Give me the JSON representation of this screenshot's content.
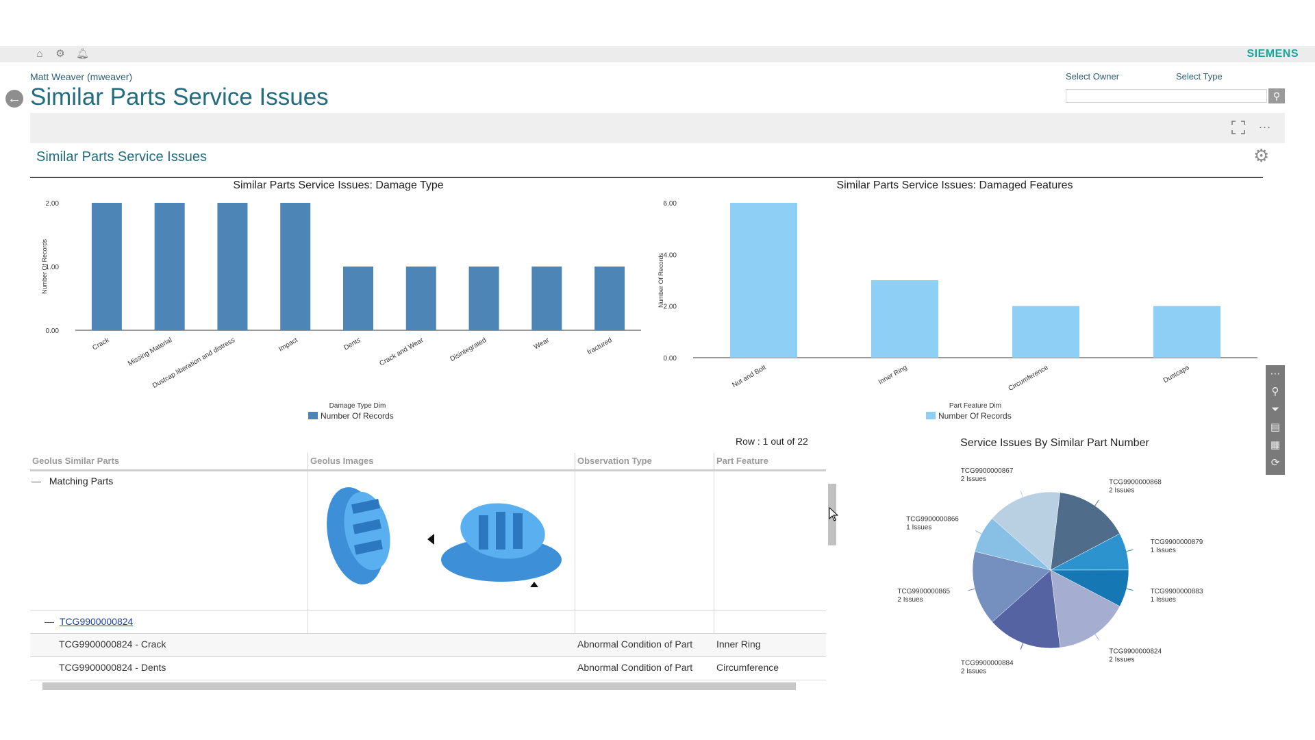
{
  "header": {
    "brand": "SIEMENS",
    "icons": [
      "home-icon",
      "gear-icon",
      "bell-icon"
    ],
    "user": "Matt Weaver (mweaver)",
    "title": "Similar Parts Service Issues",
    "filters": {
      "owner_label": "Select Owner",
      "type_label": "Select Type",
      "owner_value": ""
    }
  },
  "toolbar": {
    "more": "..."
  },
  "section": {
    "title": "Similar Parts Service Issues"
  },
  "chart_data": [
    {
      "type": "bar",
      "title": "Similar Parts Service Issues: Damage Type",
      "categories": [
        "Crack",
        "Missing Material",
        "Dustcap liberation and distress",
        "Impact",
        "Dents",
        "Crack and Wear",
        "Disintegrated",
        "Wear",
        "fractured"
      ],
      "values": [
        2,
        2,
        2,
        2,
        1,
        1,
        1,
        1,
        1
      ],
      "xlabel": "Damage Type Dim",
      "ylabel": "Number Of Records",
      "ylim": [
        0,
        2
      ],
      "yticks": [
        "0.00",
        "1.00",
        "2.00"
      ],
      "legend": "Number Of Records",
      "color": "#4d86b6"
    },
    {
      "type": "bar",
      "title": "Similar Parts Service Issues: Damaged Features",
      "categories": [
        "Nut and Bolt",
        "Inner Ring",
        "Circumference",
        "Dustcaps"
      ],
      "values": [
        6,
        3,
        2,
        2
      ],
      "xlabel": "Part Feature Dim",
      "ylabel": "Number Of Records",
      "ylim": [
        0,
        6
      ],
      "yticks": [
        "0.00",
        "2.00",
        "4.00",
        "6.00"
      ],
      "legend": "Number Of Records",
      "color": "#8ecff5"
    },
    {
      "type": "pie",
      "title": "Service Issues By Similar Part Number",
      "slices": [
        {
          "label": "TCG9900000868",
          "sub": "2 Issues",
          "value": 2,
          "color": "#4f6d8a"
        },
        {
          "label": "TCG9900000879",
          "sub": "1 Issues",
          "value": 1,
          "color": "#2d93cf"
        },
        {
          "label": "TCG9900000883",
          "sub": "1 Issues",
          "value": 1,
          "color": "#1677b5"
        },
        {
          "label": "TCG9900000824",
          "sub": "2 Issues",
          "value": 2,
          "color": "#a5aed1"
        },
        {
          "label": "TCG9900000884",
          "sub": "2 Issues",
          "value": 2,
          "color": "#5563a2"
        },
        {
          "label": "TCG9900000865",
          "sub": "2 Issues",
          "value": 2,
          "color": "#7590bf"
        },
        {
          "label": "TCG9900000866",
          "sub": "1 Issues",
          "value": 1,
          "color": "#87bfe5"
        },
        {
          "label": "TCG9900000867",
          "sub": "2 Issues",
          "value": 2,
          "color": "#b9cfe2"
        }
      ]
    }
  ],
  "grid": {
    "row_info": "Row : 1 out of 22",
    "columns": [
      "Geolus Similar Parts",
      "Geolus Images",
      "Observation Type",
      "Part Feature"
    ],
    "group": {
      "toggle": "—",
      "label": "Matching Parts"
    },
    "subgroup": {
      "toggle": "—",
      "link": "TCG9900000824"
    },
    "rows": [
      {
        "part": "TCG9900000824 - Crack",
        "observation": "Abnormal Condition of Part",
        "feature": "Inner Ring"
      },
      {
        "part": "TCG9900000824 - Dents",
        "observation": "Abnormal Condition of Part",
        "feature": "Circumference"
      }
    ]
  }
}
